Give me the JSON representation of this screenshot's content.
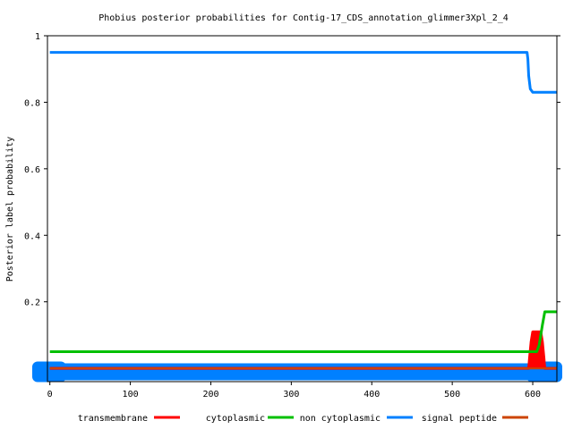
{
  "chart_data": {
    "type": "line",
    "title": "Phobius posterior probabilities for Contig-17_CDS_annotation_glimmer3Xpl_2_4",
    "xlabel": "",
    "ylabel": "Posterior label probability",
    "xlim": [
      -3,
      630
    ],
    "ylim": [
      -0.04,
      1.0
    ],
    "xticks": [
      0,
      100,
      200,
      300,
      400,
      500,
      600
    ],
    "yticks": [
      0.2,
      0.4,
      0.6,
      0.8,
      1
    ],
    "ytick_labels": [
      "0.2",
      "0.4",
      "0.6",
      "0.8",
      "1"
    ],
    "grid": false,
    "legend_position": "bottom",
    "series": [
      {
        "name": "transmembrane",
        "color": "#ff0000",
        "x": [
          0,
          595,
          596,
          598,
          600,
          610,
          612,
          614,
          615,
          630
        ],
        "y": [
          0,
          0,
          0.03,
          0.08,
          0.11,
          0.11,
          0.08,
          0.03,
          0,
          0
        ]
      },
      {
        "name": "cytoplasmic",
        "color": "#00c000",
        "x": [
          0,
          605,
          608,
          612,
          615,
          630
        ],
        "y": [
          0.05,
          0.05,
          0.07,
          0.13,
          0.17,
          0.17
        ]
      },
      {
        "name": "non cytoplasmic",
        "color": "#0080ff",
        "x": [
          0,
          593,
          594,
          595,
          597,
          600,
          630
        ],
        "y": [
          0.95,
          0.95,
          0.93,
          0.88,
          0.84,
          0.83,
          0.83
        ]
      },
      {
        "name": "signal peptide",
        "color": "#cc4400",
        "x": [
          0,
          630
        ],
        "y": [
          0,
          0
        ]
      }
    ]
  }
}
